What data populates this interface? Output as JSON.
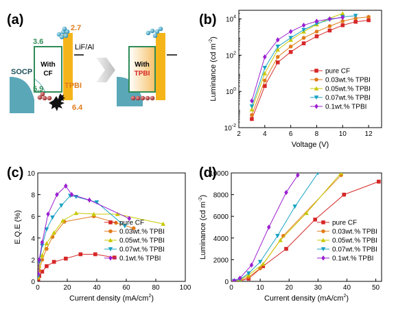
{
  "panel_labels": {
    "a": "(a)",
    "b": "(b)",
    "c": "(c)",
    "d": "(d)"
  },
  "diagram": {
    "socp_label": "SOCP",
    "with_cf_label": "With\nCF",
    "tpbi_label": "TPBI",
    "lif_al_label": "LiF/Al",
    "with_tpbi_label_with": "With",
    "with_tpbi_label_tpbi": "TPBI",
    "level_cf_lumo": "3.6",
    "level_cf_homo": "5.9",
    "level_tpbi_lumo": "2.7",
    "level_tpbi_homo": "6.4",
    "colors": {
      "socp": "#55a5b8",
      "cf_box": "#2e8b57",
      "tpbi": "#f5b51a",
      "electron": "#3aa6c9",
      "hole": "#b23a3a",
      "arrow": "#c8c8c8"
    }
  },
  "chart_data": [
    {
      "type": "line",
      "panel": "b",
      "xlabel": "Voltage (V)",
      "ylabel": "Luminance (cd m",
      "ylabel_sup": "-2",
      "ylabel_close": ")",
      "yscale": "log",
      "xlim": [
        2,
        13
      ],
      "ylim": [
        0.01,
        30000
      ],
      "xticks": [
        "2",
        "4",
        "6",
        "8",
        "10",
        "12"
      ],
      "yticks": [
        {
          "exp": "-2",
          "base": "10"
        },
        {
          "exp": "0",
          "base": "10"
        },
        {
          "exp": "2",
          "base": "10"
        },
        {
          "exp": "4",
          "base": "10"
        }
      ],
      "legend_position": "bottom-right",
      "series": [
        {
          "name": "pure CF",
          "color": "#d62728",
          "marker": "square",
          "x": [
            3,
            4,
            5,
            6,
            7,
            8,
            9,
            10,
            11,
            12
          ],
          "y": [
            0.03,
            2,
            40,
            150,
            450,
            1100,
            2300,
            4500,
            7000,
            8500
          ]
        },
        {
          "name": "0.03wt.% TPBI",
          "color": "#e07b1a",
          "marker": "circle",
          "x": [
            3,
            4,
            5,
            6,
            7,
            8,
            9,
            10,
            11,
            12
          ],
          "y": [
            0.05,
            4,
            80,
            300,
            900,
            2000,
            4000,
            7500,
            11000,
            13000
          ]
        },
        {
          "name": "0.05wt.% TPBI",
          "color": "#c8c800",
          "marker": "triangle-up",
          "x": [
            3,
            4,
            5,
            6,
            7,
            8,
            9,
            10
          ],
          "y": [
            0.1,
            10,
            200,
            700,
            2000,
            5000,
            11000,
            20000
          ]
        },
        {
          "name": "0.07wt.% TPBI",
          "color": "#17a2c4",
          "marker": "triangle-down",
          "x": [
            3,
            4,
            5,
            6,
            7,
            8,
            9,
            10,
            11
          ],
          "y": [
            0.15,
            20,
            300,
            900,
            2500,
            5500,
            9000,
            13000,
            15000
          ]
        },
        {
          "name": "0.1wt.% TPBI",
          "color": "#9b1fd1",
          "marker": "diamond",
          "x": [
            3,
            4,
            5,
            6,
            7,
            8,
            9,
            10
          ],
          "y": [
            0.3,
            80,
            700,
            2000,
            4500,
            7500,
            10000,
            12000
          ]
        }
      ]
    },
    {
      "type": "line",
      "panel": "c",
      "xlabel": "Current density (mA/cm",
      "xlabel_sup": "2",
      "xlabel_close": ")",
      "ylabel": "E.Q.E (%)",
      "xlim": [
        0,
        100
      ],
      "ylim": [
        0,
        10
      ],
      "xticks": [
        "0",
        "20",
        "40",
        "60",
        "80",
        "100"
      ],
      "yticks": [
        "0",
        "2",
        "4",
        "6",
        "8",
        "10"
      ],
      "legend_position": "bottom-left",
      "series": [
        {
          "name": "pure CF",
          "color": "#d62728",
          "marker": "square",
          "x": [
            0.3,
            1,
            3,
            6,
            11,
            19,
            29,
            39,
            52
          ],
          "y": [
            0.2,
            0.5,
            0.9,
            1.4,
            1.8,
            2.1,
            2.5,
            2.5,
            2.2
          ]
        },
        {
          "name": "0.03wt.% TPBI",
          "color": "#e07b1a",
          "marker": "circle",
          "x": [
            0.3,
            1,
            3,
            6,
            10,
            18,
            38,
            53,
            65
          ],
          "y": [
            0.3,
            1,
            2,
            3,
            4.1,
            5.5,
            6,
            5.4,
            4.9
          ]
        },
        {
          "name": "0.05wt.% TPBI",
          "color": "#c8c800",
          "marker": "triangle-up",
          "x": [
            0.3,
            1,
            3,
            6,
            11,
            17,
            26,
            38,
            54,
            85
          ],
          "y": [
            0.4,
            1.4,
            2.4,
            3.5,
            4.5,
            5.6,
            6.3,
            6.2,
            6.2,
            5.3
          ]
        },
        {
          "name": "0.07wt.% TPBI",
          "color": "#17a2c4",
          "marker": "triangle-down",
          "x": [
            0.3,
            1,
            3,
            6,
            10,
            16,
            22,
            26,
            40,
            59
          ],
          "y": [
            0.5,
            1.8,
            3.3,
            4.8,
            5.9,
            7,
            7.9,
            7.8,
            7.3,
            5.1
          ]
        },
        {
          "name": "0.1wt.% TPBI",
          "color": "#9b1fd1",
          "marker": "diamond",
          "x": [
            0.3,
            1,
            3,
            7,
            13,
            19,
            23,
            35,
            62
          ],
          "y": [
            0.7,
            2,
            3.6,
            6.2,
            8,
            8.8,
            8,
            7.5,
            5.8
          ]
        }
      ]
    },
    {
      "type": "line",
      "panel": "d",
      "xlabel": "Current density (mA/cm",
      "xlabel_sup": "2",
      "xlabel_close": ")",
      "ylabel": "Luminance (cd m",
      "ylabel_sup": "-2",
      "ylabel_close": ")",
      "xlim": [
        0,
        52
      ],
      "ylim": [
        0,
        10000
      ],
      "xticks": [
        "0",
        "10",
        "20",
        "30",
        "40",
        "50"
      ],
      "yticks": [
        "0",
        "2000",
        "4000",
        "6000",
        "8000",
        "10000"
      ],
      "legend_position": "bottom-right",
      "series": [
        {
          "name": "pure CF",
          "color": "#d62728",
          "marker": "square",
          "x": [
            1,
            3,
            6,
            11,
            19,
            29,
            39,
            51
          ],
          "y": [
            10,
            40,
            250,
            1400,
            3000,
            5700,
            8000,
            9200
          ]
        },
        {
          "name": "0.03wt.% TPBI",
          "color": "#e07b1a",
          "marker": "circle",
          "x": [
            1,
            3,
            6,
            10,
            18,
            38
          ],
          "y": [
            20,
            90,
            400,
            1200,
            4200,
            9800
          ]
        },
        {
          "name": "0.05wt.% TPBI",
          "color": "#c8c800",
          "marker": "triangle-up",
          "x": [
            1,
            3,
            6,
            11,
            17,
            26,
            38
          ],
          "y": [
            30,
            140,
            600,
            1600,
            3800,
            6300,
            10000
          ]
        },
        {
          "name": "0.07wt.% TPBI",
          "color": "#17a2c4",
          "marker": "triangle-down",
          "x": [
            1,
            3,
            6,
            10,
            16,
            22,
            30
          ],
          "y": [
            40,
            180,
            750,
            1800,
            4200,
            6900,
            10000
          ]
        },
        {
          "name": "0.1wt.% TPBI",
          "color": "#9b1fd1",
          "marker": "diamond",
          "x": [
            1,
            3,
            7,
            13,
            19,
            23
          ],
          "y": [
            60,
            300,
            1500,
            5000,
            8200,
            9800
          ]
        }
      ]
    }
  ]
}
